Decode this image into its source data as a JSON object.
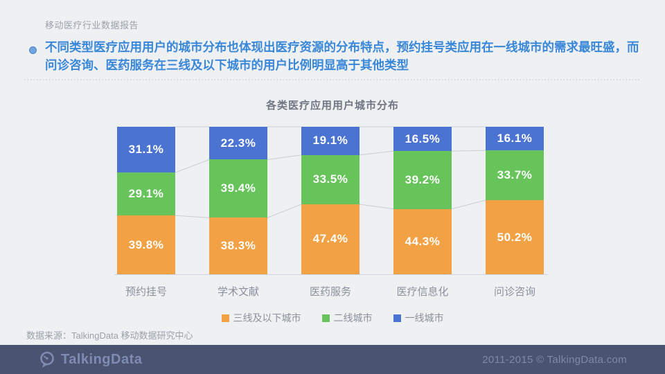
{
  "page": {
    "header": "移动医疗行业数据报告",
    "headline": "不同类型医疗应用用户的城市分布也体现出医疗资源的分布特点，预约挂号类应用在一线城市的需求最旺盛，而问诊咨询、医药服务在三线及以下城市的用户比例明显高于其他类型",
    "source_note": "数据来源：TalkingData 移动数据研究中心",
    "footer": {
      "brand": "TalkingData",
      "copyright": "2011-2015 © TalkingData.com"
    }
  },
  "chart_data": {
    "type": "bar",
    "stacked": true,
    "title": "各类医疗应用用户城市分布",
    "categories": [
      "预约挂号",
      "学术文献",
      "医药服务",
      "医疗信息化",
      "问诊咨询"
    ],
    "series": [
      {
        "name": "三线及以下城市",
        "color": "#F3A145",
        "values": [
          39.8,
          38.3,
          47.4,
          44.3,
          50.2
        ]
      },
      {
        "name": "二线城市",
        "color": "#66C45B",
        "values": [
          29.1,
          39.4,
          33.5,
          39.2,
          33.7
        ]
      },
      {
        "name": "一线城市",
        "color": "#4B73D1",
        "values": [
          31.1,
          22.3,
          19.1,
          16.5,
          16.1
        ]
      }
    ],
    "value_suffix": "%",
    "ylim": [
      0,
      100
    ],
    "xlabel": "",
    "ylabel": "",
    "grid": false,
    "legend_position": "bottom",
    "connector_line_color": "#C9CED6"
  }
}
